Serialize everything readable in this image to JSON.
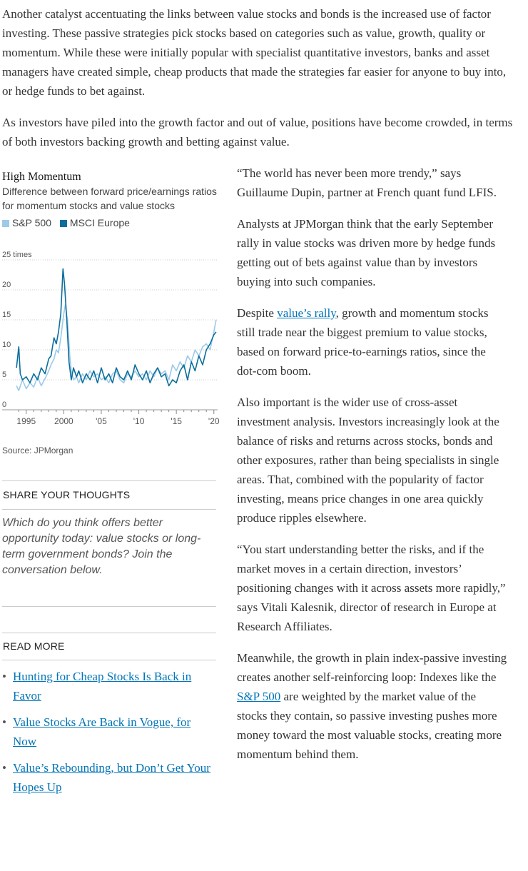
{
  "paragraphs_top": [
    "Another catalyst accentuating the links between value stocks and bonds is the increased use of factor investing. These passive strategies pick stocks based on categories such as value, growth, quality or momentum. While these were initially popular with specialist quantitative investors, banks and asset managers have created simple, cheap products that made the strategies far easier for anyone to buy into, or hedge funds to bet against.",
    "As investors have piled into the growth factor and out of value, positions have become crowded, in terms of both investors backing growth and betting against value."
  ],
  "chart": {
    "title": "High Momentum",
    "subtitle": "Difference between forward price/earnings ratios for momentum stocks and value stocks",
    "source": "Source: JPMorgan",
    "legend": [
      {
        "label": "S&P 500",
        "color": "#9ccae8"
      },
      {
        "label": "MSCI Europe",
        "color": "#0b6e9c"
      }
    ]
  },
  "chart_data": {
    "type": "line",
    "title": "High Momentum",
    "subtitle": "Difference between forward price/earnings ratios for momentum stocks and value stocks",
    "ylim": [
      0,
      25
    ],
    "xlim": [
      1993.5,
      2020.5
    ],
    "y_ticks": [
      0,
      5,
      10,
      15,
      20,
      25
    ],
    "y_tick_labels": [
      "0",
      "5",
      "10",
      "15",
      "20",
      "25 times"
    ],
    "x_ticks": [
      1995,
      2000,
      2005,
      2010,
      2015,
      2020
    ],
    "x_tick_labels": [
      "1995",
      "2000",
      "'05",
      "'10",
      "'15",
      "'20"
    ],
    "grid": true,
    "series": [
      {
        "name": "S&P 500",
        "color": "#9ccae8",
        "x": [
          1993.7,
          1994,
          1994.5,
          1995,
          1995.5,
          1996,
          1996.5,
          1997,
          1997.5,
          1998,
          1998.3,
          1998.7,
          1999,
          1999.3,
          1999.6,
          2000,
          2000.2,
          2000.5,
          2000.8,
          2001,
          2001.3,
          2001.7,
          2002,
          2002.5,
          2003,
          2003.5,
          2004,
          2004.5,
          2005,
          2005.5,
          2006,
          2006.5,
          2007,
          2007.5,
          2008,
          2008.5,
          2009,
          2009.5,
          2010,
          2010.5,
          2011,
          2011.5,
          2012,
          2012.5,
          2013,
          2013.5,
          2014,
          2014.5,
          2015,
          2015.5,
          2016,
          2016.5,
          2017,
          2017.5,
          2018,
          2018.5,
          2019,
          2019.5,
          2020,
          2020.3
        ],
        "values": [
          4,
          3.2,
          5,
          3.5,
          4.5,
          3.8,
          5.5,
          4,
          5.2,
          6.5,
          7.5,
          8.5,
          10,
          9.5,
          12,
          16,
          17.5,
          15,
          9,
          6.5,
          5,
          5.5,
          4.5,
          6,
          5,
          6.5,
          5.5,
          6,
          5,
          5.5,
          4.5,
          6,
          6.5,
          5,
          4.5,
          6,
          5.5,
          6.5,
          5.5,
          6,
          5,
          6.5,
          5.5,
          7,
          6,
          6.5,
          5,
          7.5,
          6.5,
          8,
          7,
          9,
          8,
          10,
          9,
          10.5,
          11,
          10,
          13,
          15
        ]
      },
      {
        "name": "MSCI Europe",
        "color": "#0b6e9c",
        "x": [
          1993.7,
          1994,
          1994.2,
          1994.5,
          1995,
          1995.5,
          1996,
          1996.5,
          1997,
          1997.5,
          1998,
          1998.3,
          1998.7,
          1999,
          1999.3,
          1999.6,
          1999.9,
          2000.1,
          2000.4,
          2000.7,
          2001,
          2001.3,
          2001.7,
          2002,
          2002.5,
          2003,
          2003.5,
          2004,
          2004.5,
          2005,
          2005.5,
          2006,
          2006.5,
          2007,
          2007.5,
          2008,
          2008.5,
          2009,
          2009.5,
          2010,
          2010.5,
          2011,
          2011.5,
          2012,
          2012.5,
          2013,
          2013.5,
          2014,
          2014.5,
          2015,
          2015.5,
          2016,
          2016.5,
          2017,
          2017.5,
          2018,
          2018.5,
          2019,
          2019.5,
          2020,
          2020.3
        ],
        "values": [
          7,
          10.5,
          6,
          5,
          5.5,
          4.5,
          6,
          5,
          7,
          6,
          8.5,
          9,
          12,
          11,
          13,
          16,
          23.5,
          21,
          15,
          8,
          5,
          7,
          5.5,
          6.5,
          4.5,
          6,
          5,
          6.5,
          4.5,
          7,
          5,
          6,
          4.5,
          7,
          5.5,
          5,
          6.5,
          5,
          7.5,
          6,
          5,
          6.5,
          4.5,
          6,
          7,
          5.5,
          6,
          4,
          5,
          4.5,
          6.5,
          7.5,
          5,
          8,
          6.5,
          9,
          7.5,
          10,
          11,
          12.5,
          13
        ]
      }
    ]
  },
  "sidebar": {
    "share_heading": "SHARE YOUR THOUGHTS",
    "share_text": "Which do you think offers better opportunity today: value stocks or long-term government bonds? Join the conversation below.",
    "read_more_heading": "READ MORE",
    "read_more_links": [
      "Hunting for Cheap Stocks Is Back in Favor",
      "Value Stocks Are Back in Vogue, for Now",
      "Value’s Rebounding, but Don’t Get Your Hopes Up"
    ],
    "bullet": "•"
  },
  "right_column": {
    "p1": "“The world has never been more trendy,” says Guillaume Dupin, partner at French quant fund LFIS.",
    "p2": "Analysts at JPMorgan think that the early September rally in value stocks was driven more by hedge funds getting out of bets against value than by investors buying into such companies.",
    "p3_before": "Despite ",
    "p3_link": "value’s rally",
    "p3_after": ", growth and momentum stocks still trade near the biggest premium to value stocks, based on forward price-to-earnings ratios, since the dot-com boom.",
    "p4": "Also important is the wider use of cross-asset investment analysis. Investors increasingly look at the balance of risks and returns across stocks, bonds and other exposures, rather than being specialists in single areas. That, combined with the popularity of factor investing, means price changes in one area quickly produce ripples elsewhere.",
    "p5": "“You start understanding better the risks, and if the market moves in a certain direction, investors’ positioning changes with it across assets more rapidly,” says Vitali Kalesnik, director of research in Europe at Research Affiliates.",
    "p6_before": "Meanwhile, the growth in plain index-passive investing creates another self-reinforcing loop: Indexes like the ",
    "p6_link": "S&P 500",
    "p6_after": " are weighted by the market value of the stocks they contain, so passive investing pushes more money toward the most valuable stocks, creating more momentum behind them."
  }
}
